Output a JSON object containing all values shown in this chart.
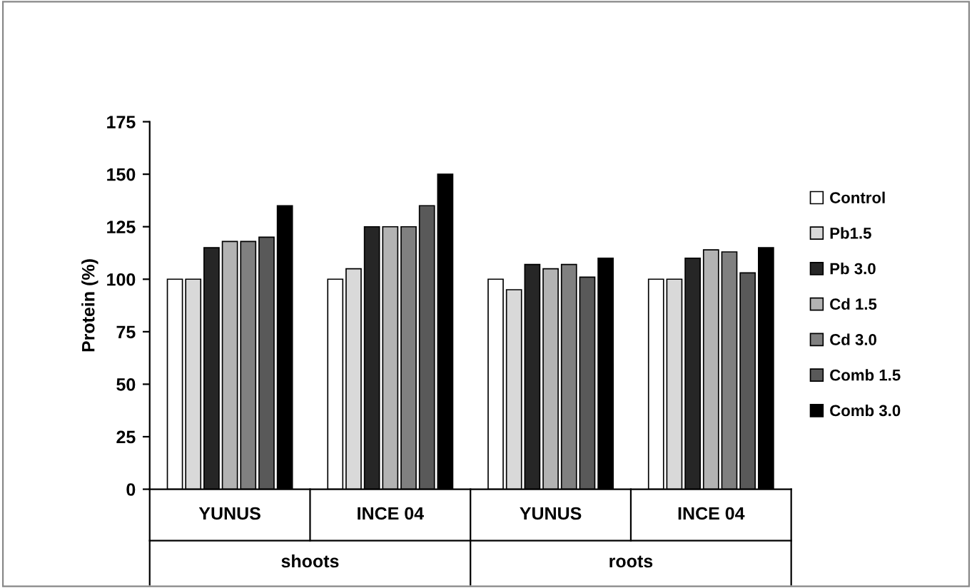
{
  "chart_data": {
    "type": "bar",
    "ylabel": "Protein (%)",
    "categories": [
      "YUNUS",
      "INCE 04",
      "YUNUS",
      "INCE 04"
    ],
    "annotations": [
      "shoots",
      "roots"
    ],
    "series": [
      {
        "name": "Control",
        "color": "#ffffff",
        "values": [
          100,
          100,
          100,
          100
        ]
      },
      {
        "name": "Pb1.5",
        "color": "#d9d9d9",
        "values": [
          100,
          105,
          95,
          100
        ]
      },
      {
        "name": "Pb 3.0",
        "color": "#262626",
        "values": [
          115,
          125,
          107,
          110
        ]
      },
      {
        "name": "Cd 1.5",
        "color": "#b3b3b3",
        "values": [
          118,
          125,
          105,
          114
        ]
      },
      {
        "name": "Cd 3.0",
        "color": "#808080",
        "values": [
          118,
          125,
          107,
          113
        ]
      },
      {
        "name": "Comb 1.5",
        "color": "#595959",
        "values": [
          120,
          135,
          101,
          103
        ]
      },
      {
        "name": "Comb 3.0",
        "color": "#000000",
        "values": [
          135,
          150,
          110,
          115
        ]
      }
    ],
    "ylim": [
      0,
      175
    ],
    "yticks": [
      0,
      25,
      50,
      75,
      100,
      125,
      150,
      175
    ],
    "grid": false,
    "legend": "right"
  }
}
